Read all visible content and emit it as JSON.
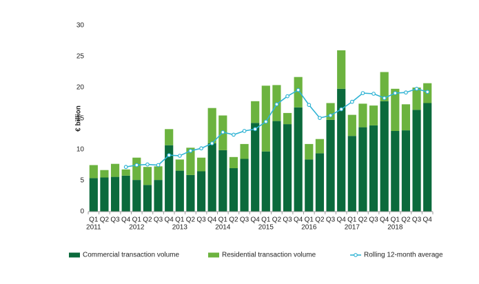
{
  "chart_data": {
    "type": "stacked-bar-line",
    "y_label": "€ billion",
    "categories": [
      "Q1",
      "Q2",
      "Q3",
      "Q4",
      "Q1",
      "Q2",
      "Q3",
      "Q4",
      "Q1",
      "Q2",
      "Q3",
      "Q4",
      "Q1",
      "Q2",
      "Q3",
      "Q4",
      "Q1",
      "Q2",
      "Q3",
      "Q4",
      "Q1",
      "Q2",
      "Q3",
      "Q4",
      "Q1",
      "Q2",
      "Q3",
      "Q4",
      "Q1",
      "Q2",
      "Q3",
      "Q4"
    ],
    "years": [
      "2011",
      "2012",
      "2013",
      "2014",
      "2015",
      "2016",
      "2017",
      "2018"
    ],
    "series": [
      {
        "name": "Commercial transaction volume",
        "color": "#0b6a3c",
        "kind": "bar",
        "values": [
          5.4,
          5.5,
          5.6,
          5.8,
          5.1,
          4.3,
          5.1,
          10.7,
          6.6,
          5.9,
          6.5,
          11.0,
          9.9,
          7.0,
          8.5,
          14.3,
          9.7,
          14.6,
          14.1,
          16.8,
          8.4,
          9.4,
          14.8,
          19.8,
          12.2,
          13.6,
          13.9,
          17.8,
          13.0,
          13.1,
          16.4,
          17.5
        ]
      },
      {
        "name": "Residential transaction volume",
        "color": "#6cb33f",
        "kind": "bar",
        "values": [
          2.1,
          1.2,
          2.1,
          1.0,
          3.6,
          2.9,
          2.2,
          2.6,
          1.8,
          4.4,
          2.2,
          5.7,
          5.6,
          1.8,
          2.4,
          3.5,
          10.6,
          5.8,
          1.8,
          4.9,
          2.5,
          2.3,
          2.7,
          6.2,
          3.4,
          3.8,
          3.2,
          4.7,
          6.8,
          4.2,
          3.6,
          3.2
        ]
      },
      {
        "name": "Rolling 12-month average",
        "color": "#2fb3d4",
        "kind": "line",
        "values": [
          null,
          null,
          null,
          7.2,
          7.5,
          7.6,
          7.5,
          9.1,
          9.0,
          9.8,
          10.2,
          11.0,
          12.8,
          12.4,
          13.0,
          13.3,
          14.5,
          17.3,
          18.6,
          19.6,
          17.2,
          15.1,
          15.5,
          16.5,
          17.7,
          19.1,
          19.0,
          18.3,
          19.1,
          19.2,
          19.8,
          19.3
        ]
      }
    ],
    "ylim": [
      0,
      30
    ],
    "yticks": [
      0,
      5,
      10,
      15,
      20,
      25,
      30
    ],
    "grid": false
  }
}
